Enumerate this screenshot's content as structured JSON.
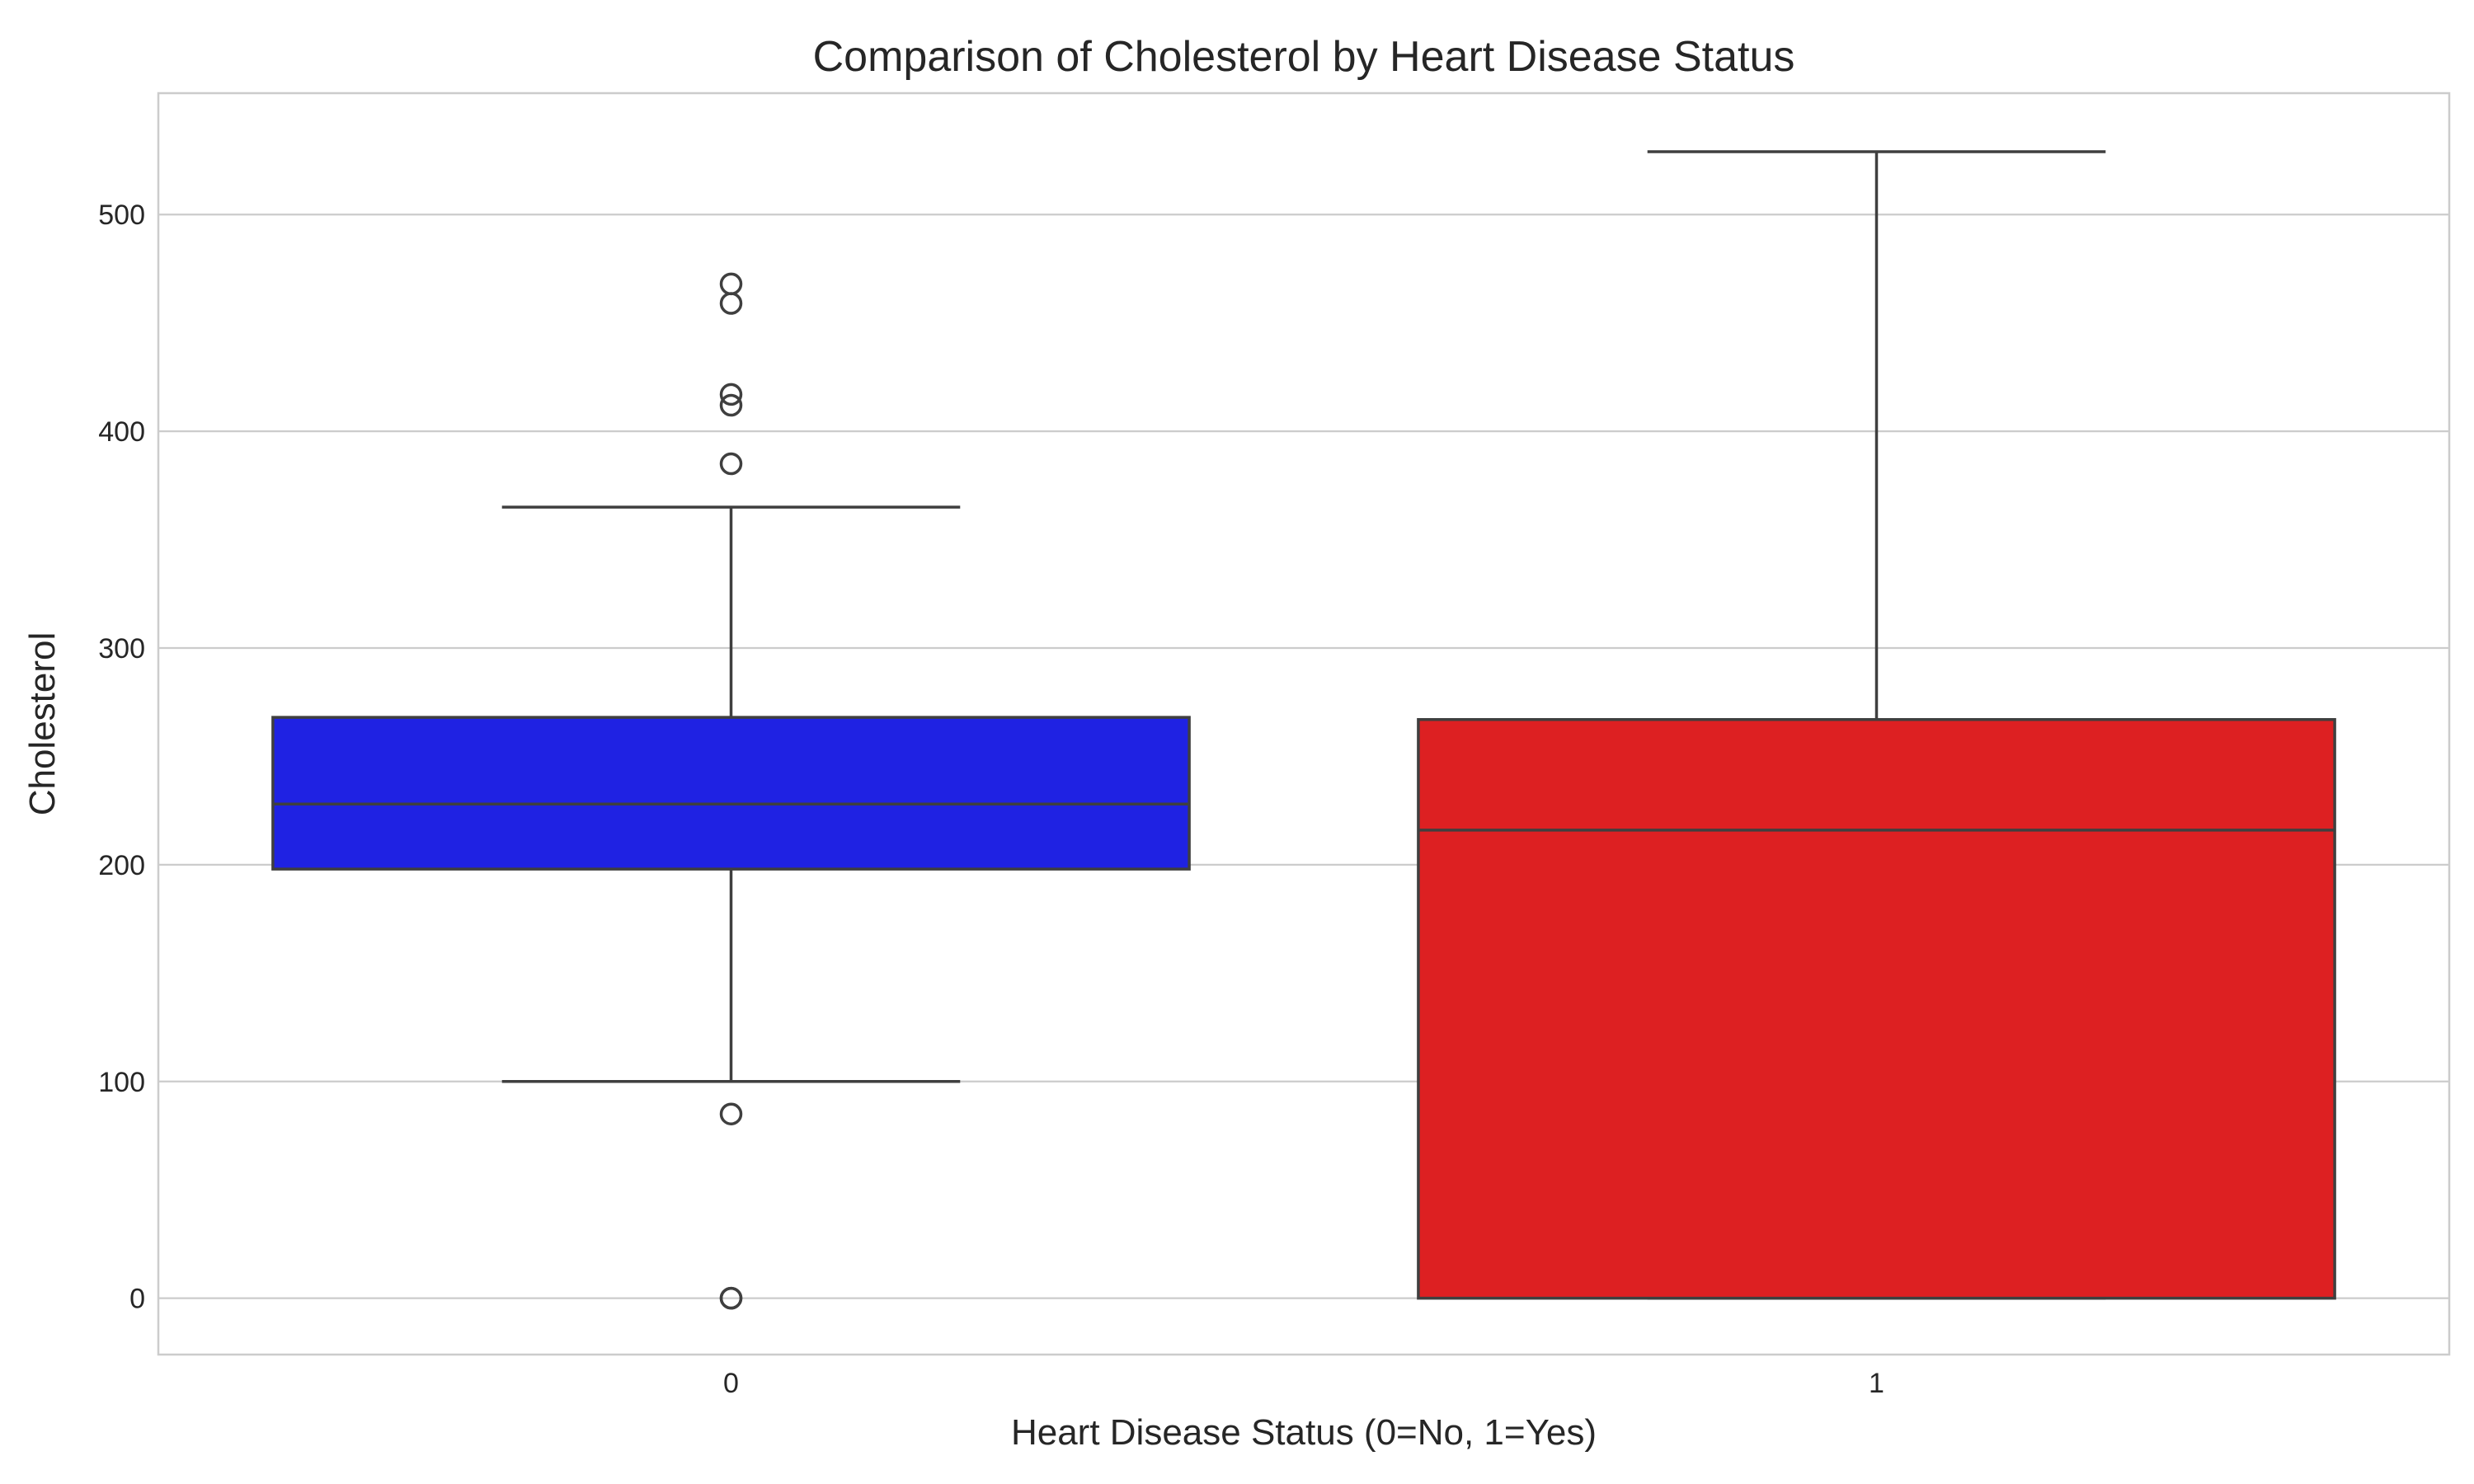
{
  "chart_data": {
    "type": "box",
    "title": "Comparison of Cholesterol by Heart Disease Status",
    "xlabel": "Heart Disease Status (0=No, 1=Yes)",
    "ylabel": "Cholesterol",
    "ylim": [
      -26,
      556
    ],
    "yticks": [
      0,
      100,
      200,
      300,
      400,
      500
    ],
    "grid": true,
    "categories": [
      "0",
      "1"
    ],
    "boxes": [
      {
        "category": "0",
        "color": "#1f22e3",
        "whisker_low": 100,
        "q1": 198,
        "median": 228,
        "q3": 268,
        "whisker_high": 365,
        "outliers": [
          468,
          459,
          417,
          412,
          385,
          85,
          0,
          0
        ]
      },
      {
        "category": "1",
        "color": "#dd2022",
        "whisker_low": 0,
        "q1": 0,
        "median": 216,
        "q3": 267,
        "whisker_high": 529,
        "outliers": []
      }
    ]
  }
}
